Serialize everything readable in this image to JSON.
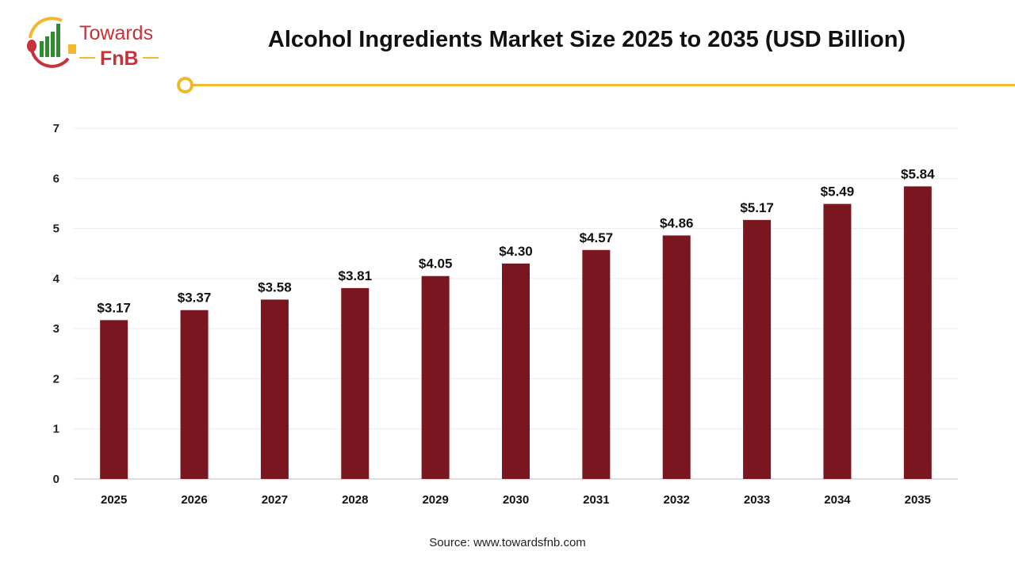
{
  "logo": {
    "text_top": "Towards",
    "text_bottom": "FnB",
    "colors": {
      "red": "#c8323a",
      "green": "#2e8b2e",
      "yellow": "#f0b82e"
    }
  },
  "title": "Alcohol Ingredients Market Size 2025 to 2035 (USD Billion)",
  "source": "Source: www.towardsfnb.com",
  "chart_data": {
    "type": "bar",
    "title": "Alcohol Ingredients Market Size 2025 to 2035 (USD Billion)",
    "categories": [
      "2025",
      "2026",
      "2027",
      "2028",
      "2029",
      "2030",
      "2031",
      "2032",
      "2033",
      "2034",
      "2035"
    ],
    "values": [
      3.17,
      3.37,
      3.58,
      3.81,
      4.05,
      4.3,
      4.57,
      4.86,
      5.17,
      5.49,
      5.84
    ],
    "data_labels": [
      "$3.17",
      "$3.37",
      "$3.58",
      "$3.81",
      "$4.05",
      "$4.30",
      "$4.57",
      "$4.86",
      "$5.17",
      "$5.49",
      "$5.84"
    ],
    "yticks": [
      "0",
      "1",
      "2",
      "3",
      "4",
      "5",
      "6",
      "7"
    ],
    "ylim": [
      0,
      7
    ],
    "grid": true,
    "bar_color": "#7a1620",
    "xlabel": "",
    "ylabel": ""
  }
}
